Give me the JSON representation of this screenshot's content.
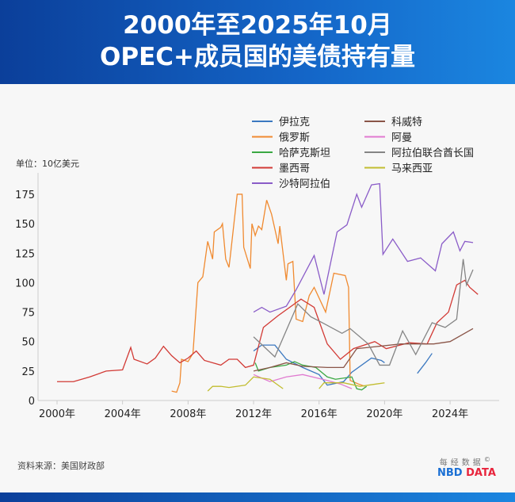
{
  "header": {
    "line1": "2000年至2025年10月",
    "line2": "OPEC+成员国的美债持有量"
  },
  "unit": "单位：10亿美元",
  "source": "资料来源：美国财政部",
  "logo": {
    "cn": "每经数据",
    "nbd": "NBD",
    "data": "DATA",
    "mark": "©"
  },
  "chart_data": {
    "type": "line",
    "title": "2000年至2025年10月 OPEC+成员国的美债持有量",
    "ylabel": "单位：10亿美元",
    "ylim": [
      0,
      185
    ],
    "xlim": [
      1999.6,
      2026.8
    ],
    "yticks": [
      0,
      25,
      50,
      75,
      100,
      125,
      150,
      175
    ],
    "xticks": [
      {
        "v": 2000,
        "label": "2000年"
      },
      {
        "v": 2004,
        "label": "2004年"
      },
      {
        "v": 2008,
        "label": "2008年"
      },
      {
        "v": 2012,
        "label": "2012年"
      },
      {
        "v": 2016,
        "label": "2016年"
      },
      {
        "v": 2020,
        "label": "2020年"
      },
      {
        "v": 2024,
        "label": "2024年"
      }
    ],
    "legend": "top-right",
    "grid": false,
    "series": [
      {
        "name": "伊拉克",
        "color": "#3b78c0",
        "segments": [
          [
            [
              2012,
              42
            ],
            [
              2012.5,
              47
            ],
            [
              2013.3,
              47
            ],
            [
              2014,
              35
            ],
            [
              2015,
              28
            ],
            [
              2016,
              22
            ],
            [
              2016.5,
              13
            ],
            [
              2017.5,
              16
            ],
            [
              2018,
              24
            ],
            [
              2019.2,
              36
            ],
            [
              2019.8,
              34
            ],
            [
              2020,
              32
            ]
          ],
          [
            [
              2022,
              23
            ],
            [
              2022.5,
              32
            ],
            [
              2022.9,
              40
            ]
          ]
        ]
      },
      {
        "name": "俄罗斯",
        "color": "#f08a30",
        "segments": [
          [
            [
              2007,
              8
            ],
            [
              2007.3,
              7
            ],
            [
              2007.5,
              15
            ],
            [
              2007.6,
              35
            ],
            [
              2008,
              33
            ],
            [
              2008.3,
              40
            ],
            [
              2008.4,
              60
            ],
            [
              2008.6,
              100
            ],
            [
              2008.9,
              105
            ],
            [
              2009.2,
              135
            ],
            [
              2009.5,
              120
            ],
            [
              2009.6,
              143
            ],
            [
              2010,
              147
            ],
            [
              2010.1,
              150
            ],
            [
              2010.3,
              120
            ],
            [
              2010.5,
              113
            ],
            [
              2010.6,
              125
            ],
            [
              2010.8,
              150
            ],
            [
              2011,
              175
            ],
            [
              2011.3,
              175
            ],
            [
              2011.4,
              130
            ],
            [
              2011.8,
              112
            ],
            [
              2011.9,
              150
            ],
            [
              2012.1,
              140
            ],
            [
              2012.3,
              148
            ],
            [
              2012.5,
              145
            ],
            [
              2012.8,
              170
            ],
            [
              2013.1,
              158
            ],
            [
              2013.5,
              133
            ],
            [
              2013.6,
              148
            ],
            [
              2014,
              102
            ],
            [
              2014.1,
              116
            ],
            [
              2014.4,
              118
            ],
            [
              2014.6,
              69
            ],
            [
              2015,
              67
            ],
            [
              2015.4,
              89
            ],
            [
              2015.7,
              96
            ],
            [
              2016.4,
              75
            ],
            [
              2016.9,
              108
            ],
            [
              2017.6,
              106
            ],
            [
              2017.8,
              96
            ],
            [
              2017.9,
              17
            ],
            [
              2018.4,
              14
            ],
            [
              2018.8,
              12
            ]
          ]
        ]
      },
      {
        "name": "哈萨克斯坦",
        "color": "#3aa843",
        "segments": [
          [
            [
              2012.1,
              32
            ],
            [
              2012.3,
              25
            ],
            [
              2013,
              28
            ],
            [
              2014,
              30
            ],
            [
              2014.5,
              33
            ],
            [
              2015,
              30
            ],
            [
              2015.8,
              28
            ],
            [
              2016.5,
              20
            ],
            [
              2017,
              18
            ],
            [
              2018,
              20
            ],
            [
              2018.3,
              10
            ],
            [
              2018.6,
              9
            ],
            [
              2018.9,
              12
            ]
          ]
        ]
      },
      {
        "name": "墨西哥",
        "color": "#d23a35",
        "segments": [
          [
            [
              2000,
              16
            ],
            [
              2001,
              16
            ],
            [
              2002,
              20
            ],
            [
              2003,
              25
            ],
            [
              2004,
              26
            ],
            [
              2004.5,
              45
            ],
            [
              2004.7,
              35
            ],
            [
              2005.5,
              31
            ],
            [
              2006,
              36
            ],
            [
              2006.5,
              46
            ],
            [
              2007,
              38
            ],
            [
              2007.5,
              32
            ],
            [
              2008,
              36
            ],
            [
              2008.5,
              42
            ],
            [
              2009,
              34
            ],
            [
              2010,
              30
            ],
            [
              2010.5,
              35
            ],
            [
              2011,
              35
            ],
            [
              2011.5,
              28
            ],
            [
              2012,
              30
            ],
            [
              2012.6,
              62
            ],
            [
              2013.5,
              72
            ],
            [
              2014.9,
              86
            ],
            [
              2015.7,
              79
            ],
            [
              2016.5,
              48
            ],
            [
              2017.3,
              35
            ],
            [
              2018.1,
              44
            ],
            [
              2019.4,
              50
            ],
            [
              2020.1,
              44
            ],
            [
              2021.5,
              49
            ],
            [
              2022.6,
              48
            ],
            [
              2023.2,
              66
            ],
            [
              2023.9,
              75
            ],
            [
              2024.4,
              98
            ],
            [
              2024.9,
              102
            ],
            [
              2025.2,
              96
            ],
            [
              2025.7,
              90
            ]
          ]
        ]
      },
      {
        "name": "沙特阿拉伯",
        "color": "#8a5cc8",
        "segments": [
          [
            [
              2012,
              75
            ],
            [
              2012.5,
              79
            ],
            [
              2013,
              75
            ],
            [
              2014,
              80
            ],
            [
              2014.6,
              94
            ],
            [
              2015.7,
              123
            ],
            [
              2016.3,
              90
            ],
            [
              2017.1,
              143
            ],
            [
              2017.7,
              149
            ],
            [
              2018.3,
              175
            ],
            [
              2018.6,
              164
            ],
            [
              2019.2,
              183
            ],
            [
              2019.7,
              184
            ],
            [
              2019.9,
              124
            ],
            [
              2020.5,
              137
            ],
            [
              2021.4,
              118
            ],
            [
              2022.2,
              121
            ],
            [
              2023.1,
              110
            ],
            [
              2023.5,
              133
            ],
            [
              2024.2,
              143
            ],
            [
              2024.6,
              127
            ],
            [
              2024.9,
              135
            ],
            [
              2025.4,
              134
            ]
          ]
        ]
      },
      {
        "name": "科威特",
        "color": "#8a5548",
        "segments": [
          [
            [
              2012,
              25
            ],
            [
              2013,
              28
            ],
            [
              2014,
              32
            ],
            [
              2015,
              29
            ],
            [
              2016.5,
              28
            ],
            [
              2017.5,
              28
            ],
            [
              2018.3,
              44
            ],
            [
              2019,
              45
            ],
            [
              2021,
              48
            ],
            [
              2022,
              48
            ],
            [
              2023,
              48
            ],
            [
              2024,
              50
            ],
            [
              2025.4,
              61
            ]
          ]
        ]
      },
      {
        "name": "阿曼",
        "color": "#e07ad0",
        "segments": [
          [
            [
              2012,
              22
            ],
            [
              2013,
              16
            ],
            [
              2014,
              20
            ],
            [
              2015,
              22
            ],
            [
              2016.5,
              17
            ],
            [
              2017.3,
              14
            ],
            [
              2018,
              10
            ]
          ]
        ]
      },
      {
        "name": "阿拉伯联合酋长国",
        "color": "#858585",
        "segments": [
          [
            [
              2012,
              54
            ],
            [
              2013.3,
              37
            ],
            [
              2014.7,
              82
            ],
            [
              2015.5,
              71
            ],
            [
              2016.2,
              66
            ],
            [
              2017.4,
              57
            ],
            [
              2017.9,
              61
            ],
            [
              2019,
              48
            ],
            [
              2019.7,
              30
            ],
            [
              2020.3,
              30
            ],
            [
              2021.1,
              59
            ],
            [
              2021.9,
              39
            ],
            [
              2022.9,
              66
            ],
            [
              2023.7,
              62
            ],
            [
              2024.4,
              69
            ],
            [
              2024.8,
              120
            ],
            [
              2025,
              98
            ],
            [
              2025.4,
              111
            ]
          ]
        ]
      },
      {
        "name": "马来西亚",
        "color": "#c2bd30",
        "segments": [
          [
            [
              2009.2,
              8
            ],
            [
              2009.5,
              12
            ],
            [
              2010,
              12
            ],
            [
              2010.5,
              11
            ],
            [
              2011.5,
              13
            ],
            [
              2012,
              20
            ],
            [
              2013,
              18
            ],
            [
              2013.8,
              10
            ]
          ],
          [
            [
              2016,
              10
            ],
            [
              2016.3,
              15
            ],
            [
              2017.5,
              15
            ],
            [
              2018.5,
              12
            ],
            [
              2019.5,
              14
            ],
            [
              2020,
              15
            ]
          ]
        ]
      }
    ]
  }
}
